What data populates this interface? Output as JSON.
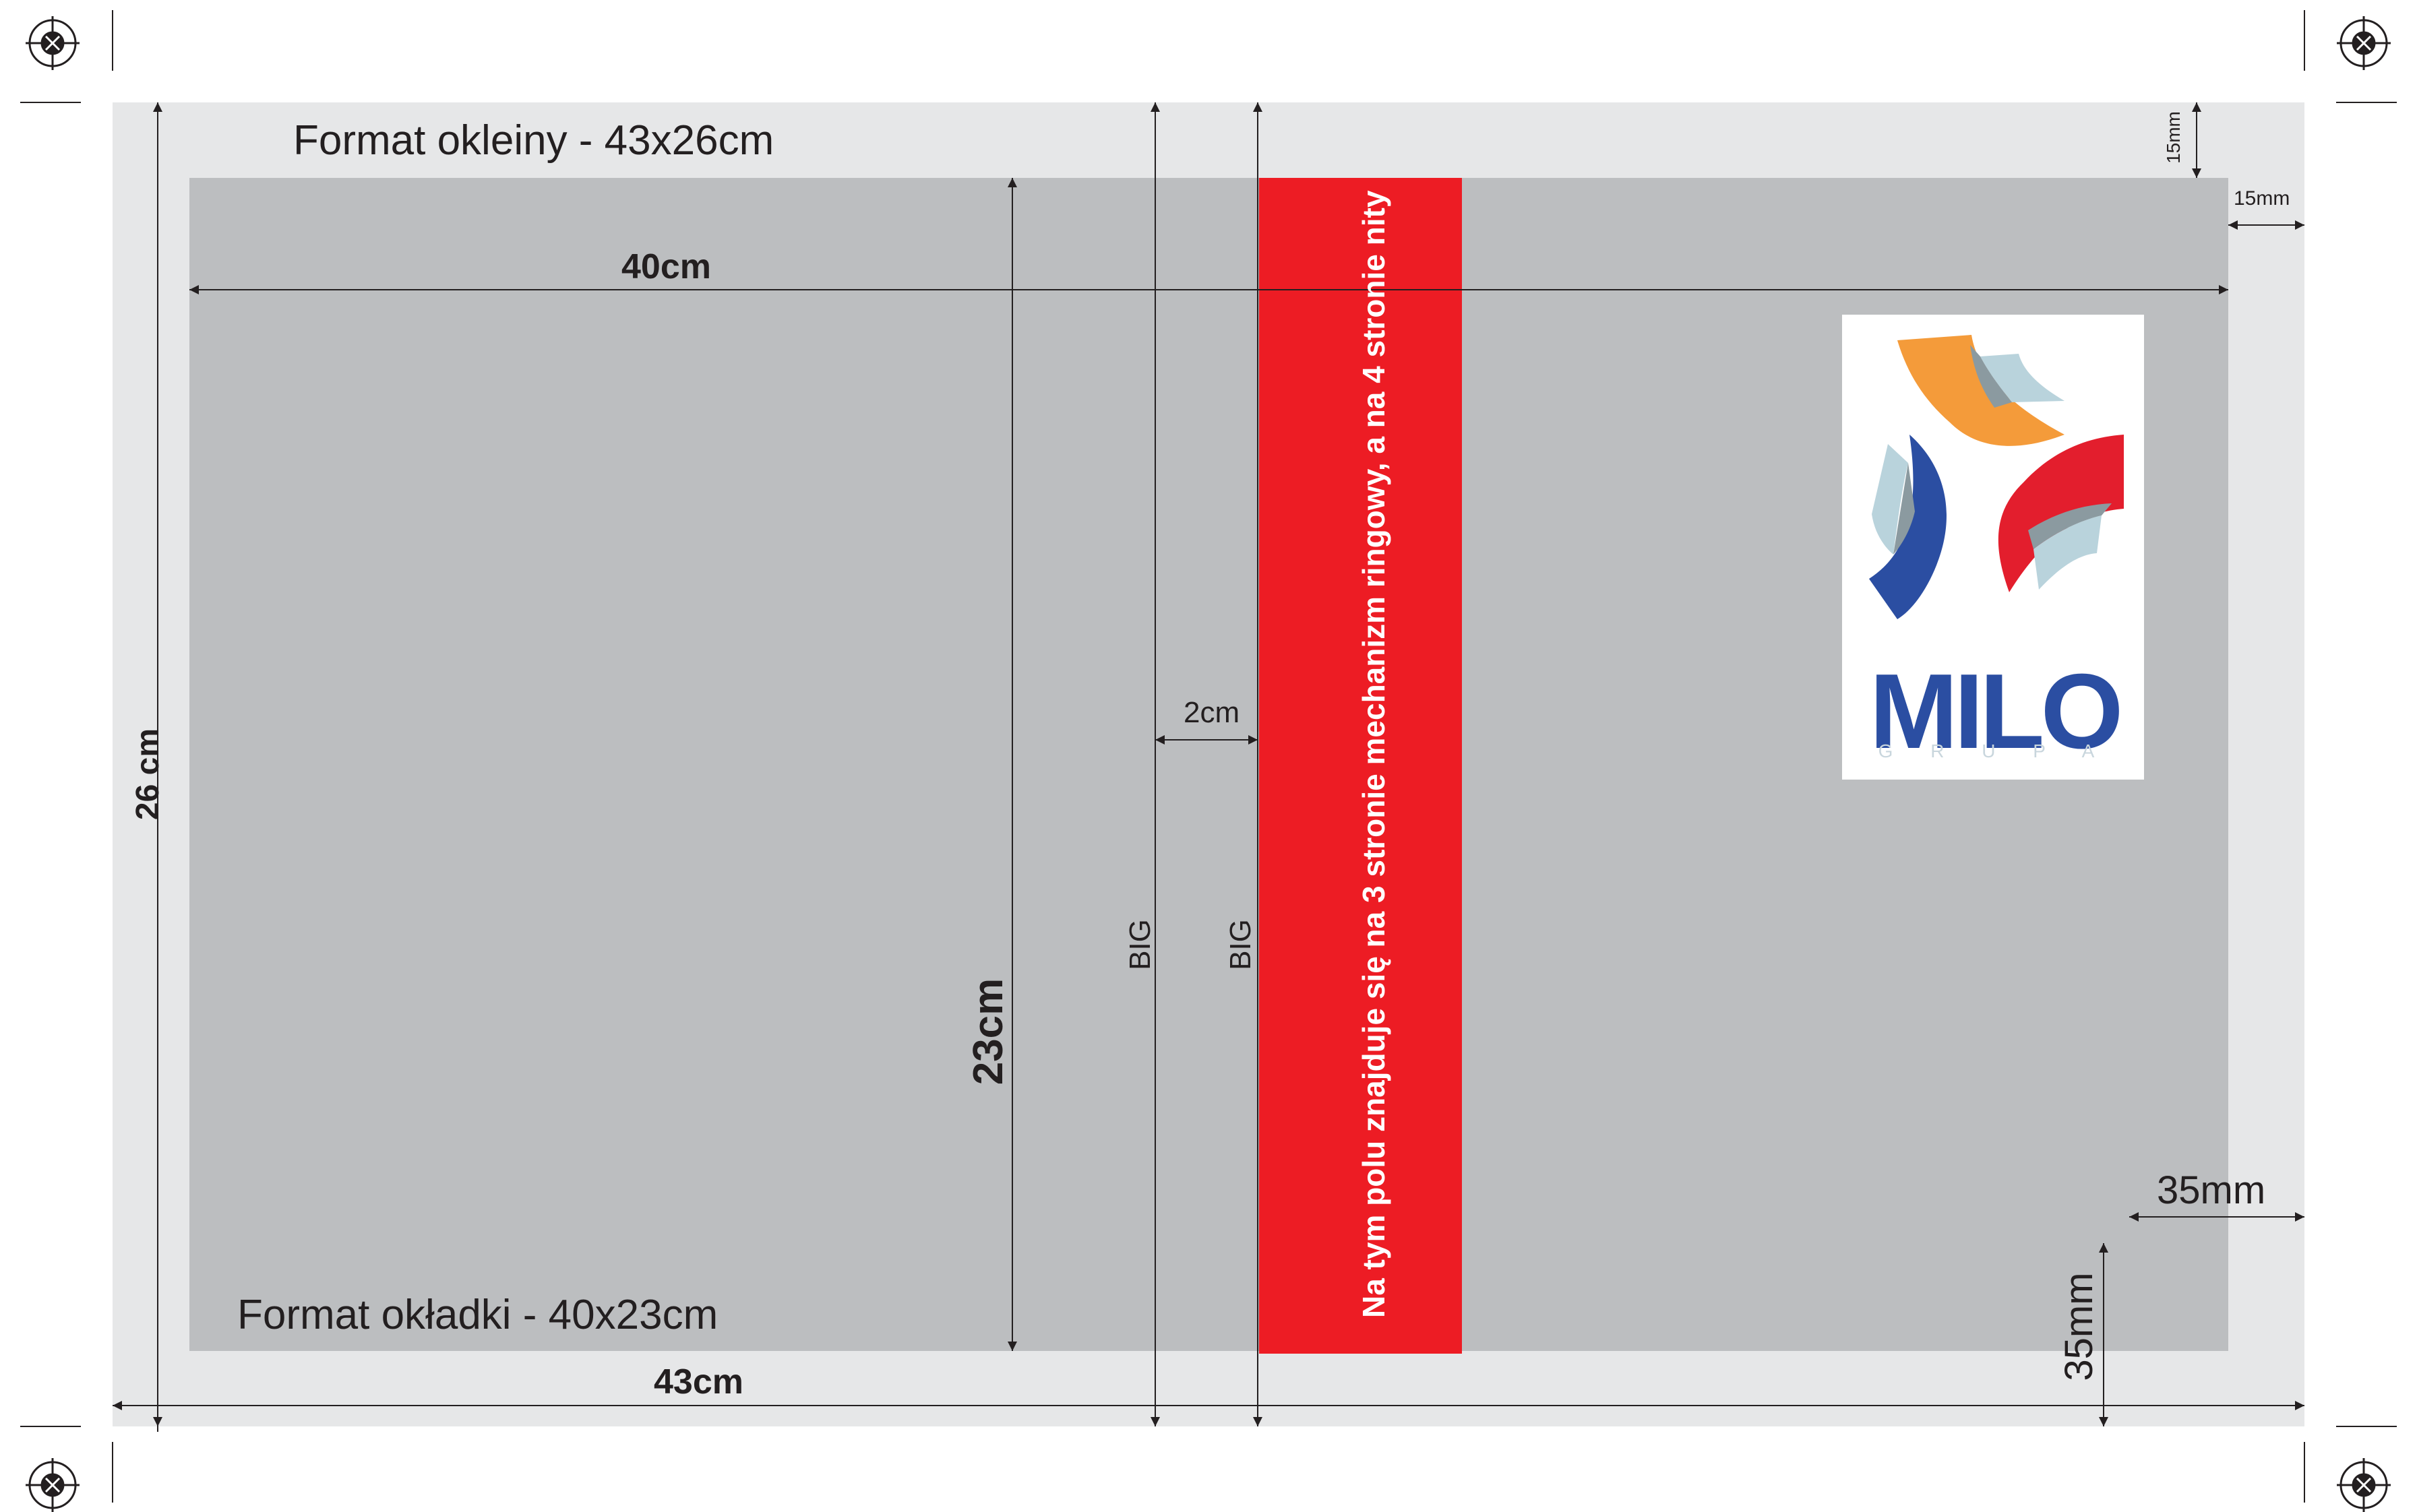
{
  "colors": {
    "outer_sheet": "#e6e7e8",
    "cover_area": "#bcbec0",
    "spine_band": "#ed1c24",
    "line": "#231f20",
    "logo_orange": "#f49b3a",
    "logo_blue": "#2b4ea2",
    "logo_red": "#e31e2d",
    "logo_lightblue": "#b9d3dc",
    "logo_gray": "#8b9aa0"
  },
  "labels": {
    "format_okleiny": "Format okleiny - 43x26cm",
    "format_okladki": "Format okładki - 40x23cm",
    "width_40": "40cm",
    "width_43": "43cm",
    "height_26": "26 cm",
    "height_23": "23cm",
    "gap_2cm": "2cm",
    "big_left": "BIG",
    "big_right": "BIG",
    "margin_top_15mm": "15mm",
    "margin_right_15mm": "15mm",
    "margin_35mm_h": "35mm",
    "margin_35mm_v": "35mm",
    "spine_note": "Na tym  polu znajduje się na 3 stronie mechanizm ringowy, a na 4 stronie nity"
  },
  "logo": {
    "name": "MILO",
    "subtitle": "G R U P A"
  },
  "icons": [
    "registration-mark-icon"
  ]
}
